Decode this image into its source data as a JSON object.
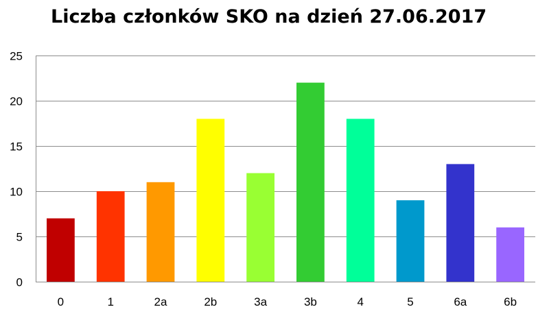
{
  "chart_data": {
    "type": "bar",
    "title": "Liczba członków SKO na dzień 27.06.2017",
    "xlabel": "",
    "ylabel": "",
    "categories": [
      "0",
      "1",
      "2a",
      "2b",
      "3a",
      "3b",
      "4",
      "5",
      "6a",
      "6b"
    ],
    "values": [
      7,
      10,
      11,
      18,
      12,
      22,
      18,
      9,
      13,
      6
    ],
    "colors": [
      "#C00000",
      "#FF3300",
      "#FF9900",
      "#FFFF00",
      "#99FF33",
      "#33CC33",
      "#00FF99",
      "#0099CC",
      "#3333CC",
      "#9966FF"
    ],
    "ylim": [
      0,
      25
    ],
    "yticks": [
      "0",
      "5",
      "10",
      "15",
      "20",
      "25"
    ],
    "grid": true,
    "legend": "none"
  }
}
